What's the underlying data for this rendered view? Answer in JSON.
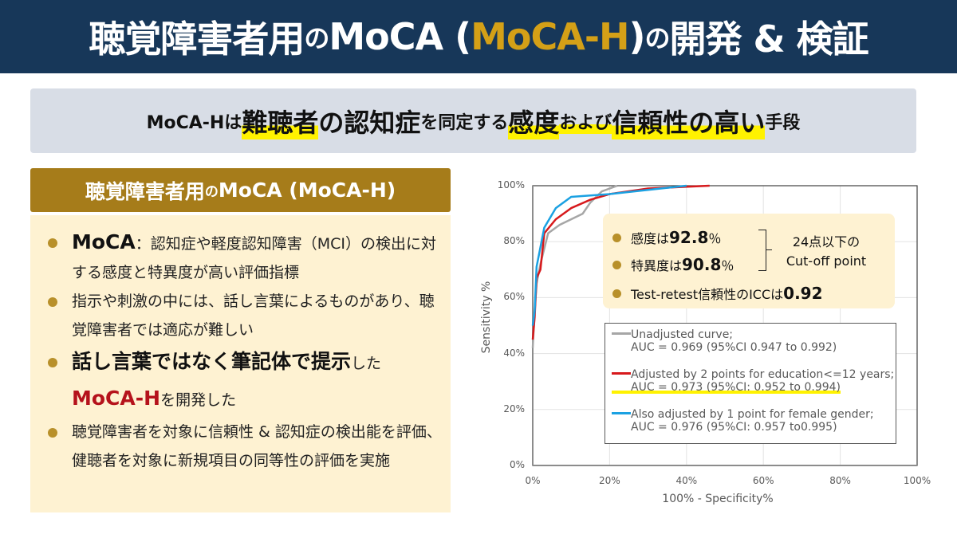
{
  "title": {
    "part1": "聴覚障害者用",
    "part2": "の",
    "part3": "MoCA (",
    "accent": "MoCA-H",
    "part4": ")",
    "part5": "の",
    "part6": "開発 & 検証"
  },
  "subtitle": {
    "t1": "MoCA-Hは",
    "h1": "難聴者",
    "t2": "の認知症",
    "t3": "を同定する",
    "h2": "感度",
    "t4": "および",
    "h3": "信頼性の高い",
    "t5": "手段"
  },
  "left_panel": {
    "header_main": "聴覚障害者用",
    "header_small": "の",
    "header_end": "MoCA (MoCA-H)",
    "bullets": [
      {
        "bold": "MoCA",
        "text": "：認知症や軽度認知障害（MCI）の検出に対する感度と特異度が高い評価指標"
      },
      {
        "text": "指示や刺激の中には、話し言葉によるものがあり、聴覚障害者では適応が難しい"
      },
      {
        "bold": "話し言葉ではなく筆記体で提示",
        "text1": "した",
        "red": "MoCA-H",
        "text2": "を開発した"
      },
      {
        "text": "聴覚障害者を対象に信頼性 & 認知症の検出能を評価、健聴者を対象に新規項目の同等性の評価を実施"
      }
    ]
  },
  "stats": {
    "sens_label": "感度は",
    "sens_value": "92.8",
    "spec_label": "特異度は",
    "spec_value": "90.8",
    "pct": "％",
    "cutoff_line1": "24点以下の",
    "cutoff_line2": "Cut-off point",
    "icc_label": "Test-retest信頼性のICCは",
    "icc_value": "0.92"
  },
  "chart_data": {
    "type": "line",
    "title": "",
    "xlabel": "100% - Specificity%",
    "ylabel": "Sensitivity %",
    "xlim": [
      0,
      100
    ],
    "ylim": [
      0,
      100
    ],
    "x_ticks": [
      "0%",
      "20%",
      "40%",
      "60%",
      "80%",
      "100%"
    ],
    "y_ticks": [
      "0%",
      "20%",
      "40%",
      "60%",
      "80%",
      "100%"
    ],
    "grid": true,
    "legend_position": "lower right inside",
    "series": [
      {
        "name": "Unadjusted curve; AUC = 0.969 (95%CI 0.947 to 0.992)",
        "color": "#a6a6a6",
        "x": [
          0,
          0.5,
          1,
          2,
          4,
          7,
          10,
          13,
          15,
          18,
          22
        ],
        "y": [
          42,
          55,
          65,
          72,
          83,
          86,
          88,
          90,
          94,
          98,
          100
        ]
      },
      {
        "name": "Adjusted by 2 points for education<=12 years; AUC = 0.973 (95%CI: 0.952 to 0.994)",
        "color": "#d7191c",
        "x": [
          0,
          0.5,
          1,
          2,
          3,
          6,
          10,
          15,
          20,
          30,
          46
        ],
        "y": [
          45,
          53,
          67,
          70,
          83,
          88,
          92,
          95,
          97,
          99,
          100
        ]
      },
      {
        "name": "Also adjusted by 1 point for female gender; AUC = 0.976 (95%CI: 0.957 to0.995)",
        "color": "#1ba1e2",
        "x": [
          0,
          0.5,
          1,
          3,
          6,
          10,
          15,
          20,
          30,
          40
        ],
        "y": [
          50,
          55,
          71,
          85,
          92,
          96,
          96.5,
          97,
          98.5,
          100
        ]
      }
    ]
  },
  "legend": {
    "entries": [
      {
        "label": "Unadjusted curve;",
        "sub": "AUC = 0.969 (95%CI 0.947 to 0.992)",
        "color": "#a6a6a6"
      },
      {
        "label": "Adjusted by 2 points for education<=12 years;",
        "sub": "AUC = 0.973 (95%CI: 0.952 to 0.994)",
        "color": "#d7191c"
      },
      {
        "label": "Also adjusted by 1 point for female gender;",
        "sub": "AUC = 0.976 (95%CI: 0.957 to0.995)",
        "color": "#1ba1e2"
      }
    ]
  },
  "colors": {
    "title_bg": "#173759",
    "accent_gold": "#d4a017",
    "header_brown": "#a67c1a",
    "panel_cream": "#fef2d2",
    "highlight_yellow": "#fff200",
    "moca_h_red": "#b5121b"
  }
}
